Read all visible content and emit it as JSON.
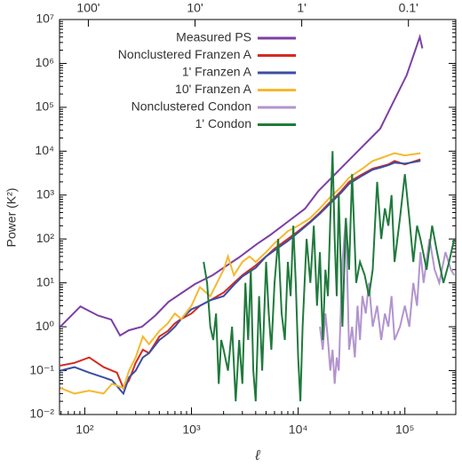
{
  "chart_data": {
    "type": "line",
    "xscale": "log",
    "yscale": "log",
    "xlabel": "ℓ",
    "ylabel": "Power (K²)",
    "legend": "upper left",
    "xlim": [
      58,
      300000
    ],
    "ylim": [
      0.01,
      10000000
    ],
    "xticks": [
      {
        "value": 100,
        "label": "10²"
      },
      {
        "value": 1000,
        "label": "10³"
      },
      {
        "value": 10000,
        "label": "10⁴"
      },
      {
        "value": 100000,
        "label": "10⁵"
      }
    ],
    "x2ticks": [
      {
        "value": 108,
        "label": "100'"
      },
      {
        "value": 1080,
        "label": "10'"
      },
      {
        "value": 10800,
        "label": "1'"
      },
      {
        "value": 108000,
        "label": "0.1'"
      }
    ],
    "yticks": [
      {
        "value": 0.01,
        "label": "10⁻²"
      },
      {
        "value": 0.1,
        "label": "10⁻¹"
      },
      {
        "value": 1,
        "label": "10⁰"
      },
      {
        "value": 10,
        "label": "10¹"
      },
      {
        "value": 100,
        "label": "10²"
      },
      {
        "value": 1000,
        "label": "10³"
      },
      {
        "value": 10000,
        "label": "10⁴"
      },
      {
        "value": 100000,
        "label": "10⁵"
      },
      {
        "value": 1000000,
        "label": "10⁶"
      },
      {
        "value": 10000000,
        "label": "10⁷"
      }
    ],
    "series": [
      {
        "name": "Measured PS",
        "color": "#7d3fa3",
        "x": [
          59,
          91,
          133,
          177,
          214,
          259,
          344,
          458,
          610,
          811,
          1080,
          1580,
          2100,
          2790,
          4090,
          5440,
          7960,
          11600,
          15500,
          22700,
          33200,
          44100,
          58700,
          78100,
          104000,
          138000,
          146000
        ],
        "values": [
          1.0,
          2.9,
          1.8,
          1.45,
          0.63,
          0.83,
          1.0,
          1.8,
          3.7,
          5.9,
          9.4,
          15,
          24,
          38,
          76,
          122,
          245,
          491,
          1250,
          3170,
          8080,
          16200,
          32500,
          133000,
          537000,
          4000000,
          2200000
        ]
      },
      {
        "name": "Nonclustered Franzen A",
        "color": "#d42a22",
        "x": [
          59,
          80,
          110,
          150,
          200,
          230,
          260,
          300,
          350,
          400,
          500,
          600,
          700,
          800,
          1000,
          1200,
          1500,
          2000,
          2500,
          3000,
          4000,
          5000,
          6000,
          8000,
          10000,
          13000,
          16000,
          20000,
          25000,
          30000,
          40000,
          50000,
          60000,
          70000,
          80000,
          100000,
          140000
        ],
        "values": [
          0.13,
          0.15,
          0.2,
          0.12,
          0.09,
          0.04,
          0.06,
          0.15,
          0.3,
          0.25,
          0.6,
          0.8,
          1.2,
          1.5,
          2,
          3,
          4,
          6,
          10,
          15,
          25,
          40,
          60,
          100,
          150,
          250,
          400,
          700,
          1200,
          2000,
          3000,
          4000,
          4500,
          5000,
          6000,
          5000,
          6500
        ]
      },
      {
        "name": "1' Franzen A",
        "color": "#3b4ea3",
        "x": [
          59,
          80,
          110,
          150,
          180,
          230,
          260,
          300,
          350,
          400,
          500,
          600,
          700,
          800,
          1000,
          1200,
          1500,
          2000,
          2500,
          3000,
          4000,
          5000,
          6000,
          8000,
          10000,
          13000,
          16000,
          20000,
          25000,
          30000,
          40000,
          50000,
          60000,
          70000,
          80000,
          100000,
          140000
        ],
        "values": [
          0.1,
          0.12,
          0.09,
          0.07,
          0.06,
          0.03,
          0.07,
          0.1,
          0.2,
          0.25,
          0.5,
          0.7,
          1.0,
          1.5,
          2.5,
          3,
          4,
          5,
          9,
          14,
          22,
          40,
          55,
          90,
          140,
          240,
          380,
          650,
          1100,
          1800,
          2800,
          3800,
          4300,
          4800,
          5500,
          5200,
          6000
        ]
      },
      {
        "name": "10' Franzen A",
        "color": "#f4b92f",
        "x": [
          59,
          80,
          110,
          150,
          180,
          230,
          260,
          300,
          350,
          400,
          500,
          600,
          700,
          800,
          1000,
          1200,
          1500,
          1800,
          2000,
          2200,
          2500,
          3000,
          3500,
          4000,
          5000,
          6000,
          8000,
          10000,
          13000,
          16000,
          20000,
          25000,
          30000,
          40000,
          50000,
          60000,
          70000,
          80000,
          100000,
          140000
        ],
        "values": [
          0.04,
          0.03,
          0.035,
          0.03,
          0.05,
          0.04,
          0.1,
          0.2,
          0.6,
          0.4,
          0.8,
          1.2,
          2,
          1.5,
          3,
          8,
          5,
          12,
          20,
          40,
          15,
          30,
          40,
          30,
          50,
          80,
          150,
          200,
          300,
          500,
          900,
          1500,
          2500,
          4000,
          6000,
          7000,
          8000,
          9000,
          8000,
          9000
        ]
      },
      {
        "name": "Nonclustered Condon",
        "color": "#b294cf",
        "x": [
          16000,
          17000,
          18000,
          19000,
          20000,
          21000,
          22000,
          23000,
          24000,
          26000,
          28000,
          30000,
          32000,
          34000,
          36000,
          38000,
          40000,
          43000,
          46000,
          50000,
          55000,
          60000,
          65000,
          70000,
          75000,
          80000,
          90000,
          100000,
          110000,
          120000,
          130000,
          140000,
          150000,
          170000,
          190000,
          210000,
          240000,
          270000,
          290000
        ],
        "values": [
          1,
          0.3,
          2,
          0.5,
          0.1,
          0.3,
          0.05,
          0.2,
          0.1,
          30,
          300,
          0.3,
          1,
          0.2,
          3,
          0.5,
          5,
          2,
          10,
          1,
          3,
          0.5,
          2,
          1,
          5,
          0.5,
          1,
          3,
          1,
          10,
          3,
          50,
          10,
          100,
          20,
          10,
          50,
          20,
          15
        ]
      },
      {
        "name": "1' Condon",
        "color": "#1f7a3c",
        "x": [
          1300,
          1400,
          1500,
          1600,
          1700,
          1800,
          1900,
          2000,
          2200,
          2400,
          2600,
          2800,
          3000,
          3200,
          3400,
          3600,
          3800,
          4000,
          4300,
          4600,
          5000,
          5300,
          5600,
          6000,
          6500,
          7000,
          7500,
          8000,
          8500,
          9000,
          9500,
          10000,
          10500,
          11000,
          12000,
          13000,
          14000,
          15000,
          16000,
          17000,
          18000,
          19000,
          20000,
          21000,
          22000,
          23000,
          24000,
          25000,
          26000,
          28000,
          30000,
          32000,
          35000,
          38000,
          42000,
          46000,
          50000,
          55000,
          60000,
          65000,
          70000,
          75000,
          80000,
          90000,
          100000,
          110000,
          120000,
          130000,
          140000,
          160000,
          180000,
          200000,
          230000,
          260000,
          290000
        ],
        "values": [
          30,
          10,
          1,
          0.5,
          2,
          0.05,
          0.5,
          0.3,
          0.1,
          1,
          0.02,
          0.5,
          0.05,
          10,
          0.5,
          20,
          0.1,
          0.02,
          5,
          0.1,
          30,
          2,
          0.3,
          10,
          100,
          2,
          0.5,
          30,
          5,
          200,
          10,
          0.2,
          0.02,
          1,
          100,
          10,
          200,
          3,
          50,
          0.5,
          20,
          5,
          300,
          10000,
          100,
          5,
          1000,
          30,
          1,
          300,
          20,
          3000,
          10,
          30,
          15,
          5,
          20,
          2000,
          100,
          500,
          200,
          1000,
          30,
          300,
          3000,
          300,
          30,
          200,
          100,
          20,
          200,
          50,
          10,
          30,
          100
        ]
      }
    ]
  }
}
